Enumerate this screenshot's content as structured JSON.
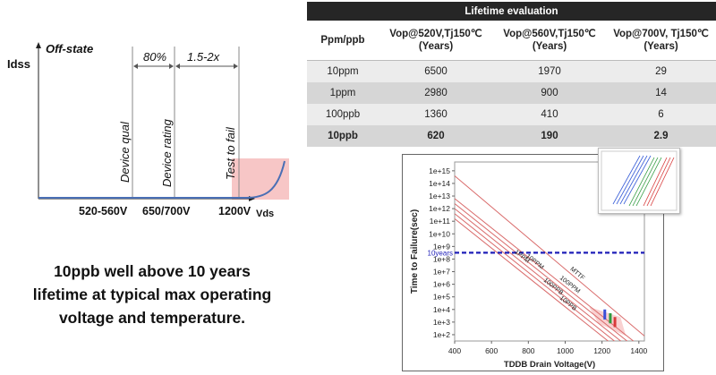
{
  "diagram": {
    "y_axis_label": "Idss",
    "state_label": "Off-state",
    "pct_label": "80%",
    "ratio_label": "1.5-2x",
    "markers": [
      "Device qual",
      "Device rating",
      "Test to fail"
    ],
    "x_ticks": [
      "520-560V",
      "650/700V",
      "1200V"
    ],
    "x_axis_label": "Vds",
    "colors": {
      "curve": "#4a6fb5",
      "fail_zone": "#f7c6c6"
    }
  },
  "summary": {
    "lines": [
      "10ppb well above 10 years",
      "lifetime at typical max operating",
      "voltage and temperature."
    ]
  },
  "table": {
    "title": "Lifetime evaluation",
    "headers": [
      {
        "line1": "Ppm/ppb",
        "line2": ""
      },
      {
        "line1": "Vop@520V,Tj150℃",
        "line2": "(Years)"
      },
      {
        "line1": "Vop@560V,Tj150℃",
        "line2": "(Years)"
      },
      {
        "line1": "Vop@700V, Tj150℃",
        "line2": "(Years)"
      }
    ],
    "rows": [
      [
        "10ppm",
        "6500",
        "1970",
        "29"
      ],
      [
        "1ppm",
        "2980",
        "900",
        "14"
      ],
      [
        "100ppb",
        "1360",
        "410",
        "6"
      ],
      [
        "10ppb",
        "620",
        "190",
        "2.9"
      ]
    ]
  },
  "chart_data": {
    "type": "line",
    "xlabel": "TDDB Drain Voltage(V)",
    "ylabel": "Time to Failure(sec)",
    "x_ticks": [
      400,
      600,
      800,
      1000,
      1200,
      1400
    ],
    "xlim": [
      400,
      1430
    ],
    "y_log": true,
    "y_ticks": [
      "1e+2",
      "1e+3",
      "1e+4",
      "1e+5",
      "1e+6",
      "1e+7",
      "1e+8",
      "1e+9",
      "1e+10",
      "1e+11",
      "1e+12",
      "1e+13",
      "1e+14",
      "1e+15"
    ],
    "ylim_exp": [
      1.5,
      15.7
    ],
    "reference_line": {
      "label": "10years",
      "y_exp": 8.5,
      "color": "#1f1fb8"
    },
    "series": [
      {
        "name": "MTTF",
        "x": [
          400,
          1430
        ],
        "y_exp": [
          14.6,
          1.9
        ]
      },
      {
        "name": "100PPM",
        "x": [
          400,
          1430
        ],
        "y_exp": [
          12.8,
          0.8
        ]
      },
      {
        "name": "10PPM",
        "x": [
          400,
          1430
        ],
        "y_exp": [
          12.4,
          0.4
        ]
      },
      {
        "name": "1PPM",
        "x": [
          400,
          1430
        ],
        "y_exp": [
          12.0,
          0.0
        ]
      },
      {
        "name": "100PPB",
        "x": [
          400,
          1430
        ],
        "y_exp": [
          11.6,
          -0.4
        ]
      },
      {
        "name": "10PPB",
        "x": [
          400,
          1430
        ],
        "y_exp": [
          11.2,
          -0.8
        ]
      }
    ],
    "colors": {
      "lines": "#d96a6a",
      "markers": [
        "#3a4fd8",
        "#2e9a3e",
        "#d83a3a"
      ]
    }
  }
}
